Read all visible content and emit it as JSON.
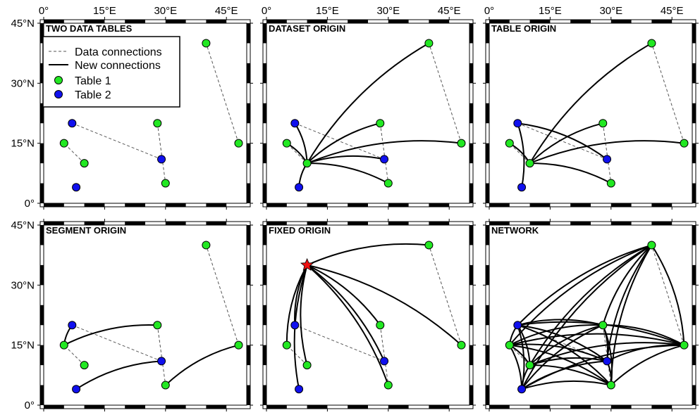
{
  "axes": {
    "x_ticks": [
      {
        "value": 0,
        "label": "0°"
      },
      {
        "value": 15,
        "label": "15°E"
      },
      {
        "value": 30,
        "label": "30°E"
      },
      {
        "value": 45,
        "label": "45°E"
      }
    ],
    "y_ticks": [
      {
        "value": 0,
        "label": "0°"
      },
      {
        "value": 15,
        "label": "15°N"
      },
      {
        "value": 30,
        "label": "30°N"
      },
      {
        "value": 45,
        "label": "45°N"
      }
    ],
    "lon_range": [
      0,
      50
    ],
    "lat_range": [
      0,
      45
    ]
  },
  "colors": {
    "table1": "#22e822",
    "table2": "#1010ee",
    "star": "#ee1111",
    "line": "#000000"
  },
  "legend": {
    "data_connections": "Data connections",
    "new_connections": "New connections",
    "table1": "Table 1",
    "table2": "Table 2"
  },
  "data": {
    "table1": [
      [
        10,
        10
      ],
      [
        5,
        15
      ],
      [
        28,
        20
      ],
      [
        30,
        5
      ],
      [
        48,
        15
      ],
      [
        40,
        40
      ]
    ],
    "table2": [
      [
        7,
        20
      ],
      [
        29,
        11
      ],
      [
        8,
        4
      ]
    ],
    "fixed_origin": [
      10,
      35
    ],
    "dataset_origin": [
      10,
      10
    ],
    "table_origin": [
      10,
      10
    ]
  },
  "panels": [
    {
      "title": "TWO DATA TABLES",
      "mode": "data",
      "legend": true
    },
    {
      "title": "DATASET ORIGIN",
      "mode": "dataset"
    },
    {
      "title": "TABLE ORIGIN",
      "mode": "table"
    },
    {
      "title": "SEGMENT ORIGIN",
      "mode": "segment"
    },
    {
      "title": "FIXED ORIGIN",
      "mode": "fixed"
    },
    {
      "title": "NETWORK",
      "mode": "network"
    }
  ]
}
